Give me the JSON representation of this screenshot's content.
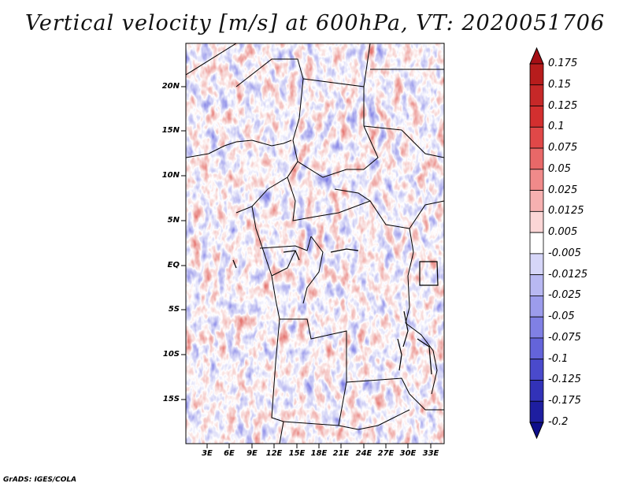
{
  "title": "Vertical velocity [m/s] at 600hPa, VT: 2020051706",
  "credit": "GrADS: IGES/COLA",
  "map": {
    "lat_labels": [
      "20N",
      "15N",
      "10N",
      "5N",
      "EQ",
      "5S",
      "10S",
      "15S"
    ],
    "lon_labels": [
      "3E",
      "6E",
      "9E",
      "12E",
      "15E",
      "18E",
      "21E",
      "24E",
      "27E",
      "30E",
      "33E"
    ]
  },
  "colorbar": {
    "labels": [
      "0.175",
      "0.15",
      "0.125",
      "0.1",
      "0.075",
      "0.05",
      "0.025",
      "0.0125",
      "0.005",
      "-0.005",
      "-0.0125",
      "-0.025",
      "-0.05",
      "-0.075",
      "-0.1",
      "-0.125",
      "-0.175",
      "-0.2"
    ],
    "colors": [
      "#a50f15",
      "#b71c1c",
      "#c62828",
      "#d32f2f",
      "#e04848",
      "#e86868",
      "#f08a8a",
      "#f6b0b0",
      "#fbd6d6",
      "#ffffff",
      "#d6d6f8",
      "#b8b8f2",
      "#9c9cec",
      "#8080e4",
      "#6464da",
      "#4a4acc",
      "#3232b8",
      "#1e1ea0",
      "#0e0e8a"
    ]
  }
}
